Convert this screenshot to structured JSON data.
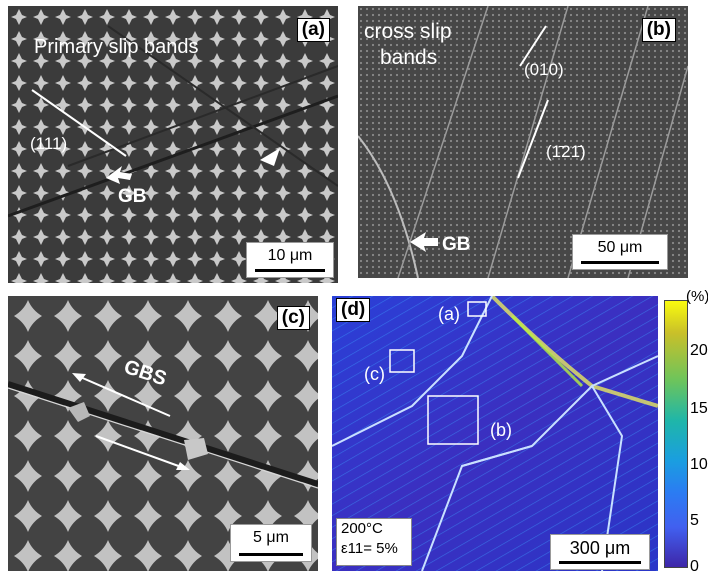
{
  "panel_a": {
    "tag": "(a)",
    "title": "Primary slip bands",
    "plane": "(111)",
    "gb": "GB",
    "scale": "10 μm"
  },
  "panel_b": {
    "tag": "(b)",
    "title_line1": "cross slip",
    "title_line2": "bands",
    "plane1": "(010)",
    "plane2": "(1̄21̄)",
    "gb": "GB",
    "scale": "50 μm"
  },
  "panel_c": {
    "tag": "(c)",
    "label": "GBS",
    "scale": "5 μm"
  },
  "panel_d": {
    "tag": "(d)",
    "roi_a": "(a)",
    "roi_b": "(b)",
    "roi_c": "(c)",
    "temperature": "200°C",
    "strain": "ε11= 5%",
    "scale": "300 μm",
    "colorbar_unit": "(%)",
    "colorbar_ticks": [
      "20",
      "15",
      "10",
      "5",
      "0"
    ]
  },
  "colors": {
    "colorbar_top": "#f9fb0e",
    "colorbar_bottom": "#3e26a8",
    "map_background": "#2f3bd0"
  }
}
